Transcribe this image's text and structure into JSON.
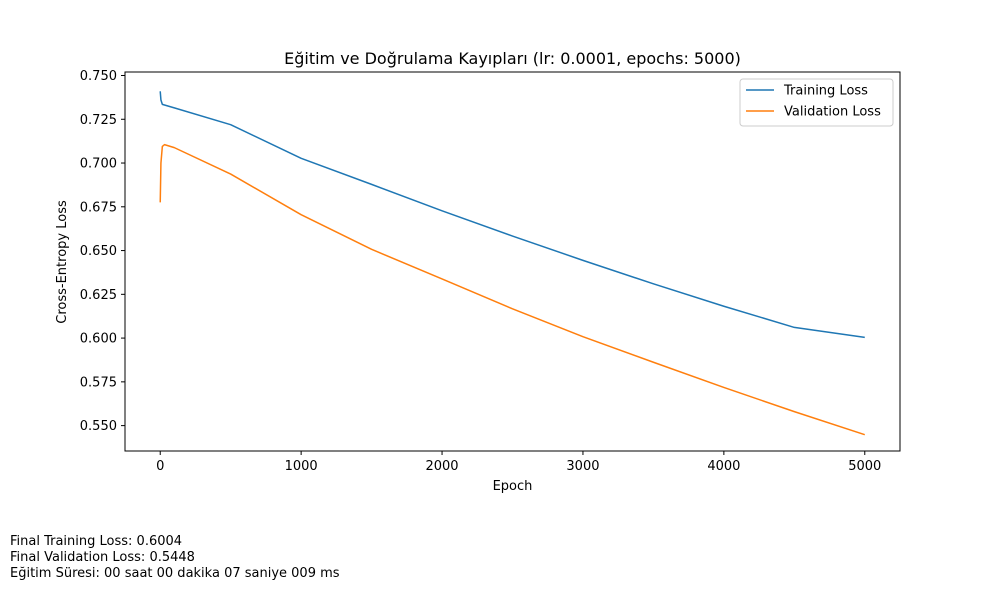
{
  "chart_data": {
    "type": "line",
    "title": "Eğitim ve Doğrulama Kayıpları (lr: 0.0001, epochs: 5000)",
    "xlabel": "Epoch",
    "ylabel": "Cross-Entropy Loss",
    "xlim": [
      -250,
      5250
    ],
    "ylim": [
      0.5355,
      0.752
    ],
    "xticks": [
      0,
      1000,
      2000,
      3000,
      4000,
      5000
    ],
    "xtick_labels": [
      "0",
      "1000",
      "2000",
      "3000",
      "4000",
      "5000"
    ],
    "yticks": [
      0.55,
      0.575,
      0.6,
      0.625,
      0.65,
      0.675,
      0.7,
      0.725,
      0.75
    ],
    "ytick_labels": [
      "0.550",
      "0.575",
      "0.600",
      "0.625",
      "0.650",
      "0.675",
      "0.700",
      "0.725",
      "0.750"
    ],
    "grid": false,
    "legend_position": "top-right",
    "series": [
      {
        "name": "Training Loss",
        "color": "#1f77b4",
        "points": [
          [
            0,
            0.741
          ],
          [
            5,
            0.736
          ],
          [
            15,
            0.7335
          ],
          [
            100,
            0.7315
          ],
          [
            500,
            0.7219
          ],
          [
            1000,
            0.7027
          ],
          [
            1500,
            0.6878
          ],
          [
            2000,
            0.6727
          ],
          [
            2500,
            0.6583
          ],
          [
            3000,
            0.6444
          ],
          [
            3500,
            0.631
          ],
          [
            4000,
            0.6182
          ],
          [
            4500,
            0.6061
          ],
          [
            5000,
            0.6004
          ]
        ]
      },
      {
        "name": "Validation Loss",
        "color": "#ff7f0e",
        "points": [
          [
            0,
            0.6775
          ],
          [
            5,
            0.7
          ],
          [
            15,
            0.7095
          ],
          [
            30,
            0.7105
          ],
          [
            100,
            0.7088
          ],
          [
            500,
            0.6937
          ],
          [
            1000,
            0.6705
          ],
          [
            1500,
            0.6507
          ],
          [
            2000,
            0.6338
          ],
          [
            2500,
            0.6167
          ],
          [
            3000,
            0.6008
          ],
          [
            3500,
            0.5862
          ],
          [
            4000,
            0.5718
          ],
          [
            4500,
            0.558
          ],
          [
            5000,
            0.5448
          ]
        ]
      }
    ]
  },
  "footer": {
    "line1": "Final Training Loss: 0.6004",
    "line2": "Final Validation Loss: 0.5448",
    "line3": "Eğitim Süresi: 00 saat 00 dakika 07 saniye 009 ms"
  }
}
